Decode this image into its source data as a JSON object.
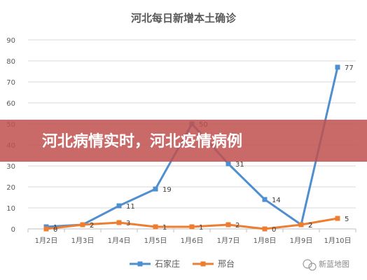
{
  "banner": {
    "text": "河北病情实时，河北疫情病例"
  },
  "watermark": {
    "text": "新蓝地图",
    "icon": "wechat-icon"
  },
  "colors": {
    "series1": "#4f8fd0",
    "series2": "#ed7d31",
    "banner": "#c0504d"
  },
  "chart_data": {
    "type": "line",
    "title": "河北每日新增本土确诊",
    "categories": [
      "1月2日",
      "1月3日",
      "1月4日",
      "1月5日",
      "1月6日",
      "1月7日",
      "1月8日",
      "1月9日",
      "1月10日"
    ],
    "ylim": [
      0,
      90
    ],
    "yticks": [
      0,
      10,
      20,
      30,
      40,
      50,
      60,
      70,
      80,
      90
    ],
    "grid": true,
    "legend": "bottom",
    "series": [
      {
        "name": "石家庄",
        "values": [
          1,
          2,
          11,
          19,
          50,
          31,
          14,
          2,
          77
        ]
      },
      {
        "name": "邢台",
        "values": [
          0,
          2,
          3,
          1,
          1,
          2,
          0,
          2,
          5
        ]
      }
    ]
  }
}
